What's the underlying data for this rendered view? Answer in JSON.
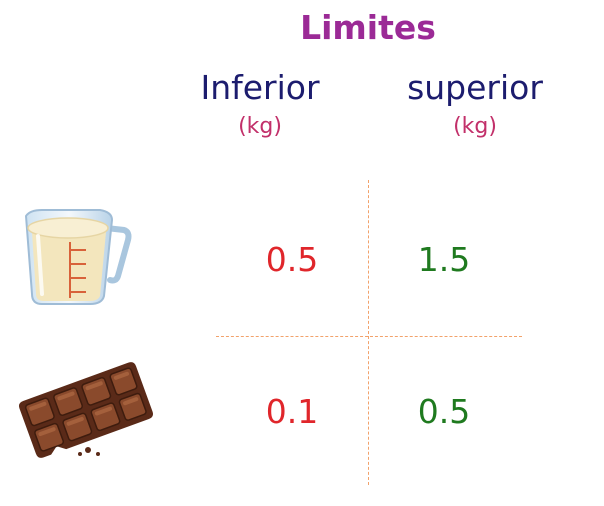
{
  "title": "Limites",
  "columns": [
    {
      "label": "Inferior",
      "unit": "(kg)"
    },
    {
      "label": "superior",
      "unit": "(kg)"
    }
  ],
  "rows": [
    {
      "icon": "measuring-cup-flour-icon",
      "lower": "0.5",
      "upper": "1.5"
    },
    {
      "icon": "chocolate-bar-icon",
      "lower": "0.1",
      "upper": "0.5"
    }
  ],
  "colors": {
    "title": "#9b2a96",
    "header": "#1c1c6e",
    "unit": "#c2306a",
    "lower": "#e0262b",
    "upper": "#1f7a1f",
    "divider": "#f2a26b"
  }
}
